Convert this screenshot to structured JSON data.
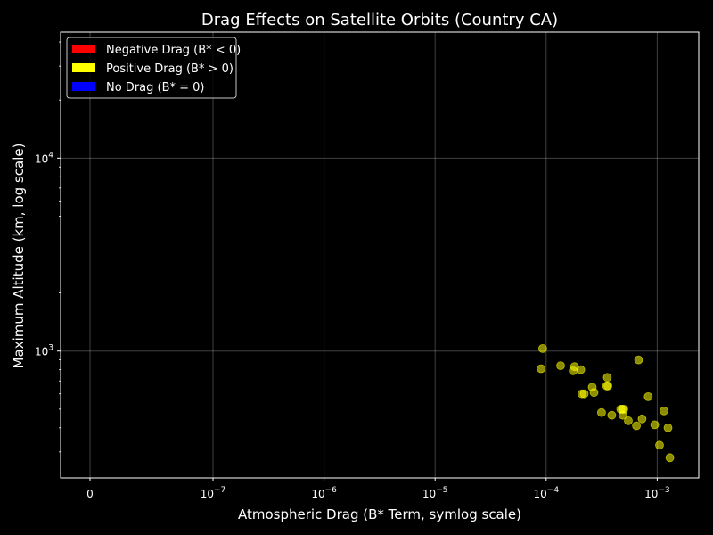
{
  "chart_data": {
    "type": "scatter",
    "title": "Drag Effects on Satellite Orbits (Country CA)",
    "xlabel": "Atmospheric Drag (B* Term, symlog scale)",
    "ylabel": "Maximum Altitude (km, log scale)",
    "x_scale": "symlog",
    "y_scale": "log",
    "xlim": [
      0,
      0.0022
    ],
    "ylim": [
      220,
      45000
    ],
    "grid": true,
    "legend_position": "top-left",
    "x_ticks": [
      {
        "value": 0,
        "base": "0",
        "exp": ""
      },
      {
        "value": 1e-07,
        "base": "10",
        "exp": "−7"
      },
      {
        "value": 1e-06,
        "base": "10",
        "exp": "−6"
      },
      {
        "value": 1e-05,
        "base": "10",
        "exp": "−5"
      },
      {
        "value": 0.0001,
        "base": "10",
        "exp": "−4"
      },
      {
        "value": 0.001,
        "base": "10",
        "exp": "−3"
      }
    ],
    "y_ticks": [
      {
        "value": 1000,
        "base": "10",
        "exp": "3"
      },
      {
        "value": 10000,
        "base": "10",
        "exp": "4"
      }
    ],
    "legend": [
      {
        "label": "Negative Drag (B* < 0)",
        "color": "#ff0000"
      },
      {
        "label": "Positive Drag (B* > 0)",
        "color": "#ffff00"
      },
      {
        "label": "No Drag (B* = 0)",
        "color": "#0000ff"
      }
    ],
    "series": [
      {
        "name": "Positive Drag (B* > 0)",
        "color": "#ffff00",
        "points": [
          [
            9.3e-05,
            1030
          ],
          [
            9e-05,
            810
          ],
          [
            0.000135,
            840
          ],
          [
            0.000175,
            790
          ],
          [
            0.00018,
            830
          ],
          [
            0.000205,
            800
          ],
          [
            0.00021,
            600
          ],
          [
            0.00022,
            600
          ],
          [
            0.00026,
            650
          ],
          [
            0.00027,
            610
          ],
          [
            0.000315,
            480
          ],
          [
            0.000355,
            730
          ],
          [
            0.00035,
            660
          ],
          [
            0.00036,
            660
          ],
          [
            0.00039,
            465
          ],
          [
            0.00047,
            500
          ],
          [
            0.000485,
            500
          ],
          [
            0.0005,
            500
          ],
          [
            0.00049,
            465
          ],
          [
            0.00055,
            435
          ],
          [
            0.00065,
            410
          ],
          [
            0.00068,
            900
          ],
          [
            0.00073,
            445
          ],
          [
            0.00083,
            580
          ],
          [
            0.00095,
            415
          ],
          [
            0.00105,
            325
          ],
          [
            0.00115,
            490
          ],
          [
            0.00125,
            400
          ],
          [
            0.0013,
            280
          ]
        ]
      }
    ]
  }
}
